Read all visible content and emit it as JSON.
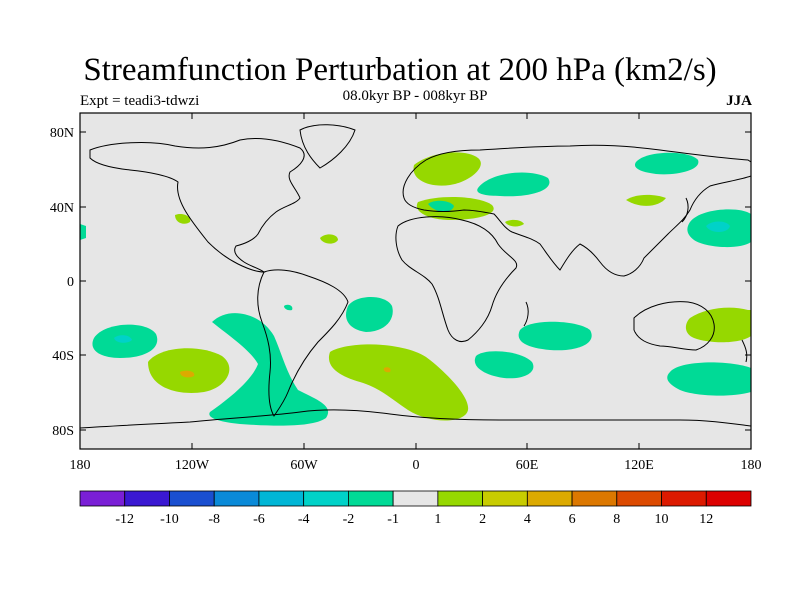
{
  "title": "Streamfunction Perturbation at 200 hPa (km2/s)",
  "subtitle": "08.0kyr BP - 008kyr BP",
  "expt": "Expt = teadi3-tdwzi",
  "season": "JJA",
  "lat_labels": [
    "80N",
    "40N",
    "0",
    "40S",
    "80S"
  ],
  "lon_labels": [
    "180",
    "120W",
    "60W",
    "0",
    "60E",
    "120E",
    "180"
  ],
  "colorbar": {
    "labels": [
      "-12",
      "-10",
      "-8",
      "-6",
      "-4",
      "-2",
      "-1",
      "1",
      "2",
      "4",
      "6",
      "8",
      "10",
      "12"
    ],
    "colors": [
      "#7a1fd6",
      "#3a18d2",
      "#1a4fd0",
      "#0a8ad8",
      "#00b6d6",
      "#00d2c8",
      "#00da96",
      "#e6e6e6",
      "#96d800",
      "#c8cc00",
      "#dcaa00",
      "#dc7800",
      "#dc4a00",
      "#dc1a00",
      "#dc0000"
    ]
  },
  "map_colors": {
    "ocean": "#e6e6e6",
    "coast": "#000000"
  }
}
